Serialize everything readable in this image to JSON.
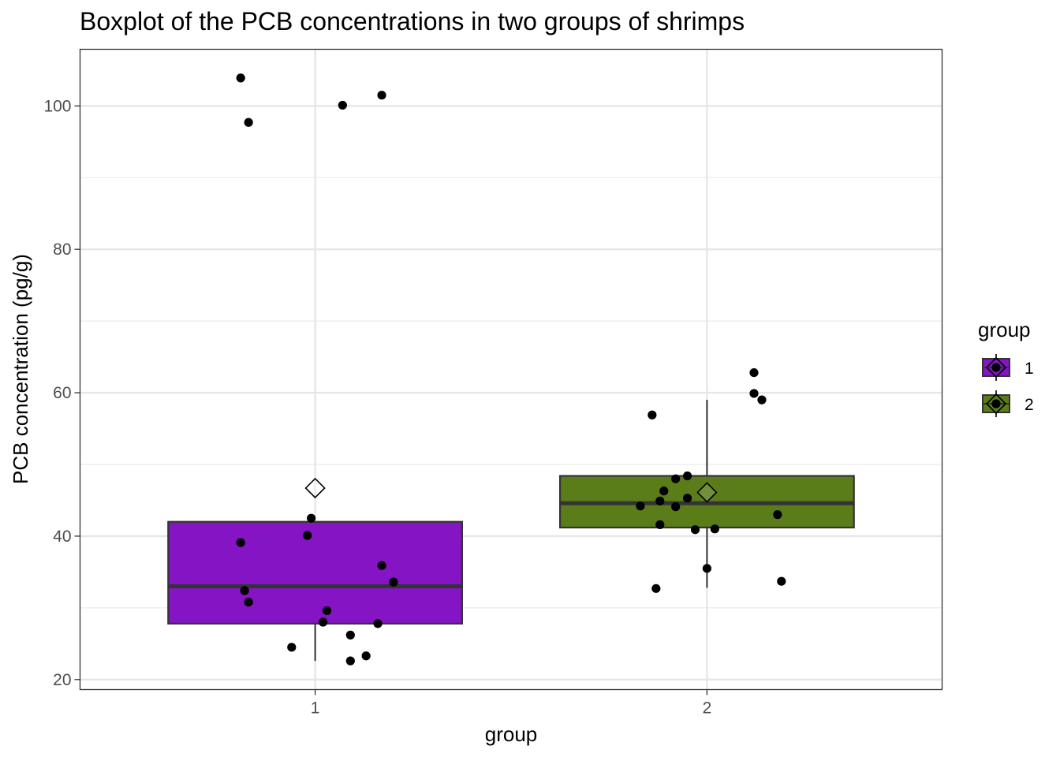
{
  "chart_data": {
    "type": "boxplot",
    "title": "Boxplot of the PCB concentrations in two groups of shrimps",
    "xlabel": "group",
    "ylabel": "PCB concentration (pg/g)",
    "categories": [
      "1",
      "2"
    ],
    "y_ticks": [
      20,
      40,
      60,
      80,
      100
    ],
    "ylim": [
      18.6,
      107.9
    ],
    "grid": true,
    "legend": {
      "title": "group",
      "position": "right",
      "entries": [
        {
          "label": "1",
          "color": "#8414c4"
        },
        {
          "label": "2",
          "color": "#5a7d1a"
        }
      ]
    },
    "groups": [
      {
        "name": "1",
        "color": "#8414c4",
        "whisker_low": 22.6,
        "q1": 27.8,
        "median": 33.0,
        "q3": 42.0,
        "whisker_high": 42.0,
        "mean": 46.7,
        "points": [
          {
            "x": 0.81,
            "y": 103.9
          },
          {
            "x": 0.83,
            "y": 97.7
          },
          {
            "x": 1.07,
            "y": 100.1
          },
          {
            "x": 1.17,
            "y": 101.5
          },
          {
            "x": 0.99,
            "y": 42.5
          },
          {
            "x": 0.98,
            "y": 40.1
          },
          {
            "x": 0.81,
            "y": 39.1
          },
          {
            "x": 1.17,
            "y": 35.9
          },
          {
            "x": 1.2,
            "y": 33.6
          },
          {
            "x": 0.82,
            "y": 32.4
          },
          {
            "x": 0.83,
            "y": 30.8
          },
          {
            "x": 1.03,
            "y": 29.6
          },
          {
            "x": 1.02,
            "y": 28.0
          },
          {
            "x": 1.16,
            "y": 27.8
          },
          {
            "x": 1.09,
            "y": 26.2
          },
          {
            "x": 0.94,
            "y": 24.5
          },
          {
            "x": 1.13,
            "y": 23.3
          },
          {
            "x": 1.09,
            "y": 22.6
          }
        ]
      },
      {
        "name": "2",
        "color": "#5a7d1a",
        "whisker_low": 32.8,
        "q1": 41.2,
        "median": 44.6,
        "q3": 48.4,
        "whisker_high": 59.0,
        "mean": 46.1,
        "points": [
          {
            "x": 2.12,
            "y": 62.8
          },
          {
            "x": 2.12,
            "y": 59.9
          },
          {
            "x": 2.14,
            "y": 59.0
          },
          {
            "x": 1.86,
            "y": 56.9
          },
          {
            "x": 1.95,
            "y": 48.4
          },
          {
            "x": 1.92,
            "y": 48.0
          },
          {
            "x": 1.89,
            "y": 46.3
          },
          {
            "x": 1.95,
            "y": 45.3
          },
          {
            "x": 1.88,
            "y": 44.9
          },
          {
            "x": 1.83,
            "y": 44.2
          },
          {
            "x": 1.92,
            "y": 44.1
          },
          {
            "x": 2.18,
            "y": 43.0
          },
          {
            "x": 1.88,
            "y": 41.6
          },
          {
            "x": 1.97,
            "y": 40.9
          },
          {
            "x": 2.02,
            "y": 41.0
          },
          {
            "x": 2.0,
            "y": 35.5
          },
          {
            "x": 2.19,
            "y": 33.7
          },
          {
            "x": 1.87,
            "y": 32.7
          }
        ]
      }
    ]
  }
}
